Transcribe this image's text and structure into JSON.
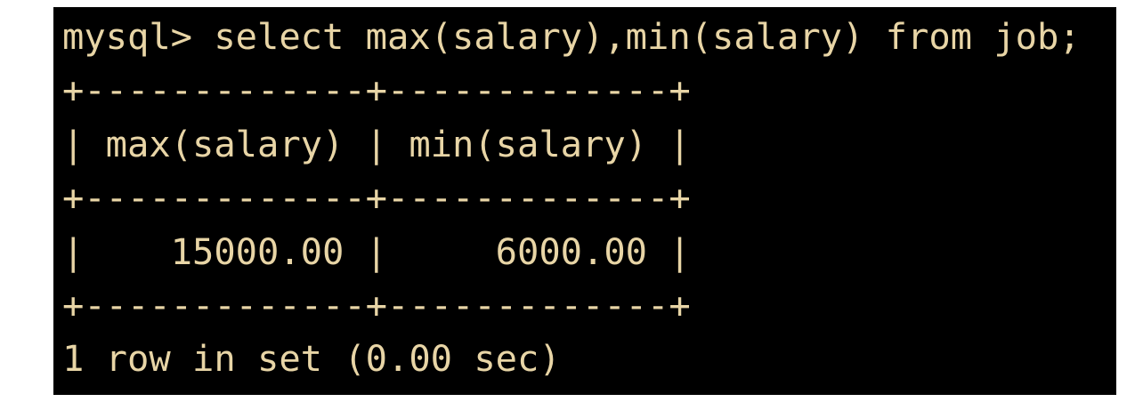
{
  "terminal": {
    "text_color": "#e8d5a6",
    "background": "#000000",
    "lines": [
      "mysql> select max(salary),min(salary) from job;",
      "+-------------+-------------+",
      "| max(salary) | min(salary) |",
      "+-------------+-------------+",
      "|    15000.00 |     6000.00 |",
      "+-------------+-------------+",
      "1 row in set (0.00 sec)"
    ]
  }
}
